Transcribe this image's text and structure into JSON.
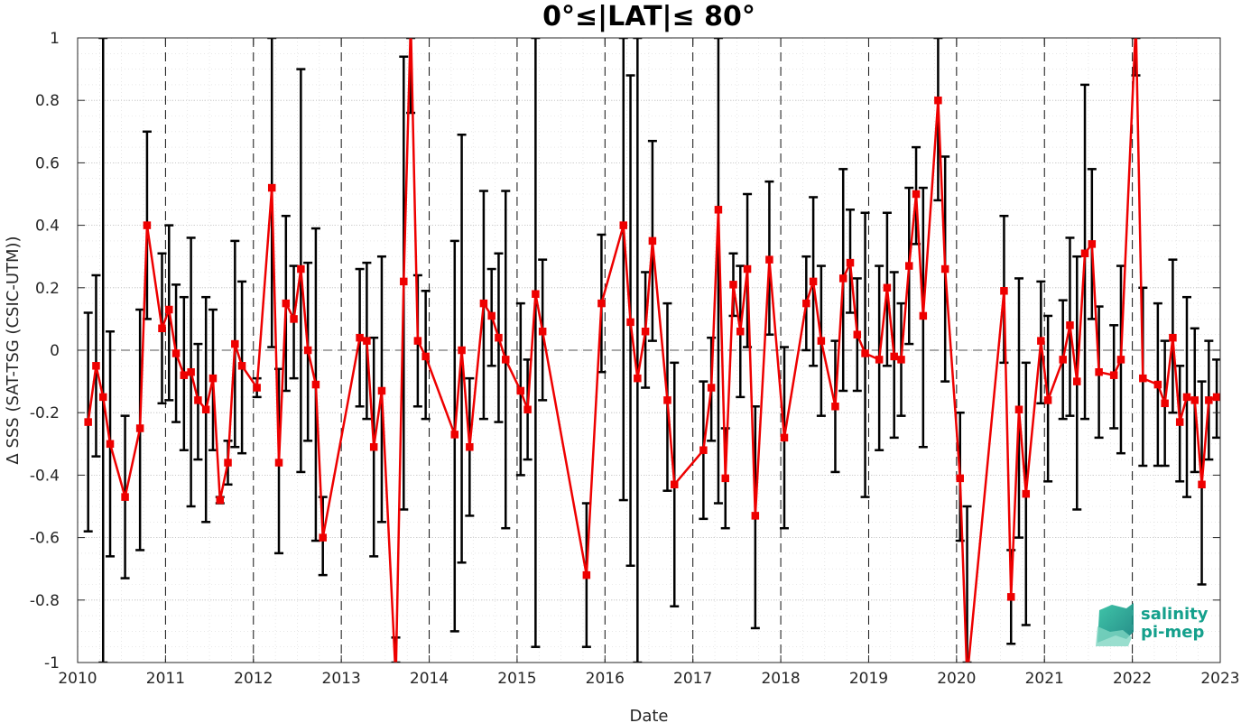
{
  "chart_data": {
    "type": "line",
    "title": "0°≤|LAT|≤ 80°",
    "xlabel": "Date",
    "ylabel": "Δ SSS (SAT-TSG (CSIC-UTM))",
    "xlim": [
      2010,
      2023
    ],
    "ylim": [
      -1,
      1
    ],
    "x_ticks": [
      "2010",
      "2011",
      "2012",
      "2013",
      "2014",
      "2015",
      "2016",
      "2017",
      "2018",
      "2019",
      "2020",
      "2021",
      "2022",
      "2023"
    ],
    "y_ticks": [
      "1",
      "0.8",
      "0.6",
      "0.4",
      "0.2",
      "0",
      "-0.2",
      "-0.4",
      "-0.6",
      "-0.8",
      "-1"
    ],
    "grid": true,
    "minor_grid": true,
    "zero_line": "dashed",
    "year_separators": "dashed vertical lines at each year",
    "colors": {
      "series": "#ee0000",
      "errorbar": "#000000",
      "grid": "#d9d9d9"
    },
    "series": [
      {
        "marker": "square",
        "points": [
          {
            "x": 2010.12,
            "y": -0.23,
            "lo": -0.58,
            "hi": 0.12
          },
          {
            "x": 2010.21,
            "y": -0.05,
            "lo": -0.34,
            "hi": 0.24
          },
          {
            "x": 2010.29,
            "y": -0.15,
            "lo": -1.0,
            "hi": 1.0
          },
          {
            "x": 2010.37,
            "y": -0.3,
            "lo": -0.66,
            "hi": 0.06
          },
          {
            "x": 2010.54,
            "y": -0.47,
            "lo": -0.73,
            "hi": -0.21
          },
          {
            "x": 2010.71,
            "y": -0.25,
            "lo": -0.64,
            "hi": 0.13
          },
          {
            "x": 2010.79,
            "y": 0.4,
            "lo": 0.1,
            "hi": 0.7
          },
          {
            "x": 2010.96,
            "y": 0.07,
            "lo": -0.17,
            "hi": 0.31
          },
          {
            "x": 2011.04,
            "y": 0.13,
            "lo": -0.16,
            "hi": 0.4
          },
          {
            "x": 2011.12,
            "y": -0.01,
            "lo": -0.23,
            "hi": 0.21
          },
          {
            "x": 2011.21,
            "y": -0.08,
            "lo": -0.32,
            "hi": 0.17
          },
          {
            "x": 2011.29,
            "y": -0.07,
            "lo": -0.5,
            "hi": 0.36
          },
          {
            "x": 2011.37,
            "y": -0.16,
            "lo": -0.35,
            "hi": 0.02
          },
          {
            "x": 2011.46,
            "y": -0.19,
            "lo": -0.55,
            "hi": 0.17
          },
          {
            "x": 2011.54,
            "y": -0.09,
            "lo": -0.32,
            "hi": 0.13
          },
          {
            "x": 2011.62,
            "y": -0.48,
            "lo": -0.49,
            "hi": -0.47
          },
          {
            "x": 2011.71,
            "y": -0.36,
            "lo": -0.43,
            "hi": -0.29
          },
          {
            "x": 2011.79,
            "y": 0.02,
            "lo": -0.31,
            "hi": 0.35
          },
          {
            "x": 2011.87,
            "y": -0.05,
            "lo": -0.33,
            "hi": 0.22
          },
          {
            "x": 2012.04,
            "y": -0.12,
            "lo": -0.15,
            "hi": -0.09
          },
          {
            "x": 2012.21,
            "y": 0.52,
            "lo": 0.01,
            "hi": 1.0
          },
          {
            "x": 2012.29,
            "y": -0.36,
            "lo": -0.65,
            "hi": -0.06
          },
          {
            "x": 2012.37,
            "y": 0.15,
            "lo": -0.13,
            "hi": 0.43
          },
          {
            "x": 2012.46,
            "y": 0.1,
            "lo": -0.09,
            "hi": 0.27
          },
          {
            "x": 2012.54,
            "y": 0.26,
            "lo": -0.39,
            "hi": 0.9
          },
          {
            "x": 2012.62,
            "y": 0.0,
            "lo": -0.29,
            "hi": 0.28
          },
          {
            "x": 2012.71,
            "y": -0.11,
            "lo": -0.61,
            "hi": 0.39
          },
          {
            "x": 2012.79,
            "y": -0.6,
            "lo": -0.72,
            "hi": -0.47
          },
          {
            "x": 2013.21,
            "y": 0.04,
            "lo": -0.18,
            "hi": 0.26
          },
          {
            "x": 2013.29,
            "y": 0.03,
            "lo": -0.22,
            "hi": 0.28
          },
          {
            "x": 2013.37,
            "y": -0.31,
            "lo": -0.66,
            "hi": 0.04
          },
          {
            "x": 2013.46,
            "y": -0.13,
            "lo": -0.55,
            "hi": 0.3
          },
          {
            "x": 2013.62,
            "y": -1.05,
            "lo": -1.0,
            "hi": -0.92
          },
          {
            "x": 2013.71,
            "y": 0.22,
            "lo": -0.51,
            "hi": 0.94
          },
          {
            "x": 2013.79,
            "y": 1.05,
            "lo": 0.76,
            "hi": 1.0
          },
          {
            "x": 2013.87,
            "y": 0.03,
            "lo": -0.18,
            "hi": 0.24
          },
          {
            "x": 2013.96,
            "y": -0.02,
            "lo": -0.22,
            "hi": 0.19
          },
          {
            "x": 2014.29,
            "y": -0.27,
            "lo": -0.9,
            "hi": 0.35
          },
          {
            "x": 2014.37,
            "y": 0.0,
            "lo": -0.68,
            "hi": 0.69
          },
          {
            "x": 2014.46,
            "y": -0.31,
            "lo": -0.53,
            "hi": -0.09
          },
          {
            "x": 2014.62,
            "y": 0.15,
            "lo": -0.22,
            "hi": 0.51
          },
          {
            "x": 2014.71,
            "y": 0.11,
            "lo": -0.05,
            "hi": 0.26
          },
          {
            "x": 2014.79,
            "y": 0.04,
            "lo": -0.23,
            "hi": 0.31
          },
          {
            "x": 2014.87,
            "y": -0.03,
            "lo": -0.57,
            "hi": 0.51
          },
          {
            "x": 2015.04,
            "y": -0.13,
            "lo": -0.4,
            "hi": 0.15
          },
          {
            "x": 2015.12,
            "y": -0.19,
            "lo": -0.35,
            "hi": -0.03
          },
          {
            "x": 2015.21,
            "y": 0.18,
            "lo": -0.95,
            "hi": 1.0
          },
          {
            "x": 2015.29,
            "y": 0.06,
            "lo": -0.16,
            "hi": 0.29
          },
          {
            "x": 2015.79,
            "y": -0.72,
            "lo": -0.95,
            "hi": -0.49
          },
          {
            "x": 2015.96,
            "y": 0.15,
            "lo": -0.07,
            "hi": 0.37
          },
          {
            "x": 2016.21,
            "y": 0.4,
            "lo": -0.48,
            "hi": 1.0
          },
          {
            "x": 2016.29,
            "y": 0.09,
            "lo": -0.69,
            "hi": 0.88
          },
          {
            "x": 2016.37,
            "y": -0.09,
            "lo": -1.0,
            "hi": 1.0
          },
          {
            "x": 2016.46,
            "y": 0.06,
            "lo": -0.12,
            "hi": 0.25
          },
          {
            "x": 2016.54,
            "y": 0.35,
            "lo": 0.03,
            "hi": 0.67
          },
          {
            "x": 2016.71,
            "y": -0.16,
            "lo": -0.45,
            "hi": 0.15
          },
          {
            "x": 2016.79,
            "y": -0.43,
            "lo": -0.82,
            "hi": -0.04
          },
          {
            "x": 2017.12,
            "y": -0.32,
            "lo": -0.54,
            "hi": -0.1
          },
          {
            "x": 2017.21,
            "y": -0.12,
            "lo": -0.29,
            "hi": 0.04
          },
          {
            "x": 2017.29,
            "y": 0.45,
            "lo": -0.49,
            "hi": 1.0
          },
          {
            "x": 2017.37,
            "y": -0.41,
            "lo": -0.57,
            "hi": -0.25
          },
          {
            "x": 2017.46,
            "y": 0.21,
            "lo": 0.11,
            "hi": 0.31
          },
          {
            "x": 2017.54,
            "y": 0.06,
            "lo": -0.15,
            "hi": 0.27
          },
          {
            "x": 2017.62,
            "y": 0.26,
            "lo": 0.01,
            "hi": 0.5
          },
          {
            "x": 2017.71,
            "y": -0.53,
            "lo": -0.89,
            "hi": -0.18
          },
          {
            "x": 2017.87,
            "y": 0.29,
            "lo": 0.05,
            "hi": 0.54
          },
          {
            "x": 2018.04,
            "y": -0.28,
            "lo": -0.57,
            "hi": 0.01
          },
          {
            "x": 2018.29,
            "y": 0.15,
            "lo": 0.0,
            "hi": 0.3
          },
          {
            "x": 2018.37,
            "y": 0.22,
            "lo": -0.05,
            "hi": 0.49
          },
          {
            "x": 2018.46,
            "y": 0.03,
            "lo": -0.21,
            "hi": 0.27
          },
          {
            "x": 2018.62,
            "y": -0.18,
            "lo": -0.39,
            "hi": 0.03
          },
          {
            "x": 2018.71,
            "y": 0.23,
            "lo": -0.13,
            "hi": 0.58
          },
          {
            "x": 2018.79,
            "y": 0.28,
            "lo": 0.12,
            "hi": 0.45
          },
          {
            "x": 2018.87,
            "y": 0.05,
            "lo": -0.13,
            "hi": 0.23
          },
          {
            "x": 2018.96,
            "y": -0.01,
            "lo": -0.47,
            "hi": 0.44
          },
          {
            "x": 2019.12,
            "y": -0.03,
            "lo": -0.32,
            "hi": 0.27
          },
          {
            "x": 2019.21,
            "y": 0.2,
            "lo": -0.05,
            "hi": 0.44
          },
          {
            "x": 2019.29,
            "y": -0.02,
            "lo": -0.28,
            "hi": 0.25
          },
          {
            "x": 2019.37,
            "y": -0.03,
            "lo": -0.21,
            "hi": 0.15
          },
          {
            "x": 2019.46,
            "y": 0.27,
            "lo": 0.02,
            "hi": 0.52
          },
          {
            "x": 2019.54,
            "y": 0.5,
            "lo": 0.34,
            "hi": 0.65
          },
          {
            "x": 2019.62,
            "y": 0.11,
            "lo": -0.31,
            "hi": 0.52
          },
          {
            "x": 2019.79,
            "y": 0.8,
            "lo": 0.48,
            "hi": 1.0
          },
          {
            "x": 2019.87,
            "y": 0.26,
            "lo": -0.1,
            "hi": 0.62
          },
          {
            "x": 2020.04,
            "y": -0.41,
            "lo": -0.61,
            "hi": -0.2
          },
          {
            "x": 2020.12,
            "y": -1.05,
            "lo": -1.0,
            "hi": -0.5
          },
          {
            "x": 2020.54,
            "y": 0.19,
            "lo": -0.04,
            "hi": 0.43
          },
          {
            "x": 2020.62,
            "y": -0.79,
            "lo": -0.94,
            "hi": -0.64
          },
          {
            "x": 2020.71,
            "y": -0.19,
            "lo": -0.6,
            "hi": 0.23
          },
          {
            "x": 2020.79,
            "y": -0.46,
            "lo": -0.88,
            "hi": -0.04
          },
          {
            "x": 2020.96,
            "y": 0.03,
            "lo": -0.17,
            "hi": 0.22
          },
          {
            "x": 2021.04,
            "y": -0.16,
            "lo": -0.42,
            "hi": 0.11
          },
          {
            "x": 2021.21,
            "y": -0.03,
            "lo": -0.22,
            "hi": 0.16
          },
          {
            "x": 2021.29,
            "y": 0.08,
            "lo": -0.21,
            "hi": 0.36
          },
          {
            "x": 2021.37,
            "y": -0.1,
            "lo": -0.51,
            "hi": 0.3
          },
          {
            "x": 2021.46,
            "y": 0.31,
            "lo": -0.22,
            "hi": 0.85
          },
          {
            "x": 2021.54,
            "y": 0.34,
            "lo": 0.1,
            "hi": 0.58
          },
          {
            "x": 2021.62,
            "y": -0.07,
            "lo": -0.28,
            "hi": 0.14
          },
          {
            "x": 2021.79,
            "y": -0.08,
            "lo": -0.25,
            "hi": 0.08
          },
          {
            "x": 2021.87,
            "y": -0.03,
            "lo": -0.33,
            "hi": 0.27
          },
          {
            "x": 2022.04,
            "y": 1.05,
            "lo": 0.88,
            "hi": 1.0
          },
          {
            "x": 2022.12,
            "y": -0.09,
            "lo": -0.37,
            "hi": 0.2
          },
          {
            "x": 2022.29,
            "y": -0.11,
            "lo": -0.37,
            "hi": 0.15
          },
          {
            "x": 2022.37,
            "y": -0.17,
            "lo": -0.37,
            "hi": 0.03
          },
          {
            "x": 2022.46,
            "y": 0.04,
            "lo": -0.2,
            "hi": 0.29
          },
          {
            "x": 2022.54,
            "y": -0.23,
            "lo": -0.42,
            "hi": -0.05
          },
          {
            "x": 2022.62,
            "y": -0.15,
            "lo": -0.47,
            "hi": 0.17
          },
          {
            "x": 2022.71,
            "y": -0.16,
            "lo": -0.39,
            "hi": 0.07
          },
          {
            "x": 2022.79,
            "y": -0.43,
            "lo": -0.75,
            "hi": -0.1
          },
          {
            "x": 2022.87,
            "y": -0.16,
            "lo": -0.35,
            "hi": 0.03
          },
          {
            "x": 2022.96,
            "y": -0.15,
            "lo": -0.28,
            "hi": -0.03
          }
        ]
      }
    ]
  },
  "logo": {
    "line1": "salinity",
    "line2": "pi-mep",
    "color": "#14a08c"
  }
}
